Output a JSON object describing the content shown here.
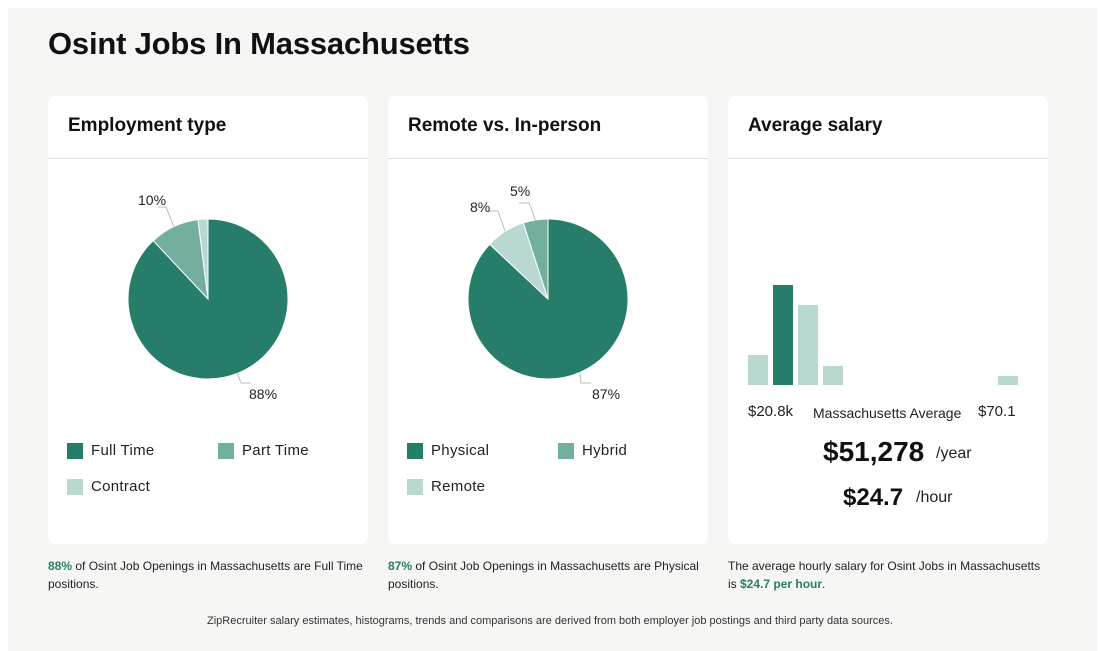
{
  "title": "Osint Jobs In Massachusetts",
  "colors": {
    "primary": "#267e6a",
    "secondary": "#74ae9f",
    "tertiary": "#b9d8cf",
    "highlight": "#267e6a"
  },
  "employment": {
    "title": "Employment type",
    "legend": [
      "Full Time",
      "Part Time",
      "Contract"
    ],
    "labels": [
      "88%",
      "10%"
    ],
    "caption_pct": "88%",
    "caption_text": " of Osint Job Openings in Massachusetts are Full Time positions."
  },
  "remote": {
    "title": "Remote vs. In-person",
    "legend": [
      "Physical",
      "Hybrid",
      "Remote"
    ],
    "labels": [
      "87%",
      "8%",
      "5%"
    ],
    "caption_pct": "87%",
    "caption_text": " of Osint Job Openings in Massachusetts are Physical positions."
  },
  "salary": {
    "title": "Average salary",
    "min_label": "$20.8k",
    "avg_label": "Massachusetts Average",
    "max_label": "$70.1",
    "yearly": "$51,278",
    "yearly_unit": "/year",
    "hourly": "$24.7",
    "hourly_unit": "/hour",
    "caption_text": "The average hourly salary for Osint Jobs in Massachusetts is ",
    "caption_value": "$24.7 per hour",
    "caption_end": "."
  },
  "footnote": "ZipRecruiter salary estimates, histograms, trends and comparisons are derived from both employer job postings and third party data sources.",
  "chart_data": [
    {
      "type": "pie",
      "title": "Employment type",
      "categories": [
        "Full Time",
        "Part Time",
        "Contract"
      ],
      "values": [
        88,
        10,
        2
      ],
      "colors": [
        "#267e6a",
        "#74ae9f",
        "#b9d8cf"
      ]
    },
    {
      "type": "pie",
      "title": "Remote vs. In-person",
      "categories": [
        "Physical",
        "Remote",
        "Hybrid"
      ],
      "values": [
        87,
        8,
        5
      ],
      "colors": [
        "#267e6a",
        "#b9d8cf",
        "#74ae9f"
      ]
    },
    {
      "type": "bar",
      "title": "Average salary",
      "values": [
        30,
        100,
        80,
        19,
        0,
        0,
        0,
        0,
        0,
        0,
        9
      ],
      "highlight_index": 1,
      "bar_colors": [
        "#b9d8cf",
        "#267e6a",
        "#b9d8cf",
        "#b9d8cf",
        "#b9d8cf",
        "#b9d8cf",
        "#b9d8cf",
        "#b9d8cf",
        "#b9d8cf",
        "#b9d8cf",
        "#b9d8cf"
      ],
      "x_range_labels": [
        "$20.8k",
        "$70.1"
      ]
    }
  ]
}
